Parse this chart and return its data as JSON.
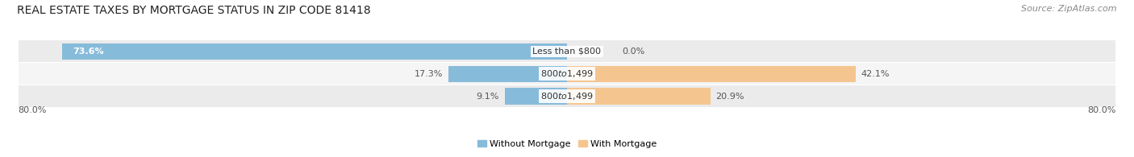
{
  "title": "REAL ESTATE TAXES BY MORTGAGE STATUS IN ZIP CODE 81418",
  "source": "Source: ZipAtlas.com",
  "rows": [
    {
      "label": "Less than $800",
      "without_mortgage": 73.6,
      "with_mortgage": 0.0,
      "without_pct_label": "73.6%",
      "with_pct_label": "0.0%"
    },
    {
      "label": "$800 to $1,499",
      "without_mortgage": 17.3,
      "with_mortgage": 42.1,
      "without_pct_label": "17.3%",
      "with_pct_label": "42.1%"
    },
    {
      "label": "$800 to $1,499",
      "without_mortgage": 9.1,
      "with_mortgage": 20.9,
      "without_pct_label": "9.1%",
      "with_pct_label": "20.9%"
    }
  ],
  "x_left_label": "80.0%",
  "x_right_label": "80.0%",
  "x_min": -80.0,
  "x_max": 80.0,
  "color_without": "#87BBDA",
  "color_with": "#F5C590",
  "color_bg_bar": "#E8E8E8",
  "color_bg_fig": "#FFFFFF",
  "color_bg_row_even": "#F2F2F2",
  "legend_labels": [
    "Without Mortgage",
    "With Mortgage"
  ],
  "title_fontsize": 10,
  "label_fontsize": 8,
  "pct_fontsize": 8,
  "source_fontsize": 8
}
